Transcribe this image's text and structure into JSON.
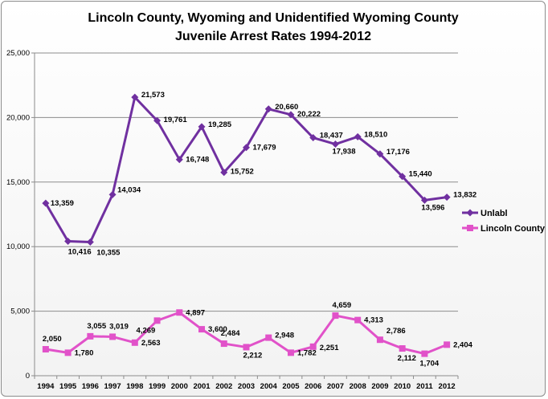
{
  "chart_data": {
    "type": "line",
    "title": "Lincoln County, Wyoming and Unidentified Wyoming County",
    "subtitle": "Juvenile Arrest Rates 1994-2012",
    "categories": [
      "1994",
      "1995",
      "1996",
      "1997",
      "1998",
      "1999",
      "2000",
      "2001",
      "2002",
      "2003",
      "2004",
      "2005",
      "2006",
      "2007",
      "2008",
      "2009",
      "2010",
      "2011",
      "2012"
    ],
    "ylim": [
      0,
      25000
    ],
    "yticks": [
      "0",
      "5,000",
      "10,000",
      "15,000",
      "20,000",
      "25,000"
    ],
    "grid": true,
    "legend_position": "right",
    "series": [
      {
        "name": "Unlabl",
        "color": "#7030a0",
        "marker": "diamond",
        "values": [
          13359,
          10416,
          10355,
          14034,
          21573,
          19761,
          16748,
          19285,
          15752,
          17679,
          20660,
          20222,
          18437,
          17938,
          18510,
          17176,
          15440,
          13596,
          13832
        ],
        "labels": [
          "13,359",
          "10,416",
          "10,355",
          "14,034",
          "21,573",
          "19,761",
          "16,748",
          "19,285",
          "15,752",
          "17,679",
          "20,660",
          "20,222",
          "18,437",
          "17,938",
          "18,510",
          "17,176",
          "15,440",
          "13,596",
          "13,832"
        ]
      },
      {
        "name": "Lincoln County",
        "color": "#e152c9",
        "marker": "square",
        "values": [
          2050,
          1780,
          3055,
          3019,
          2563,
          4269,
          4897,
          3600,
          2484,
          2212,
          2948,
          1782,
          2251,
          4659,
          4313,
          2786,
          2112,
          1704,
          2404
        ],
        "labels": [
          "2,050",
          "1,780",
          "3,055",
          "3,019",
          "2,563",
          "4,269",
          "4,897",
          "3,600",
          "2,484",
          "2,212",
          "2,948",
          "1,782",
          "2,251",
          "4,659",
          "4,313",
          "2,786",
          "2,112",
          "1,704",
          "2,404"
        ]
      }
    ]
  }
}
